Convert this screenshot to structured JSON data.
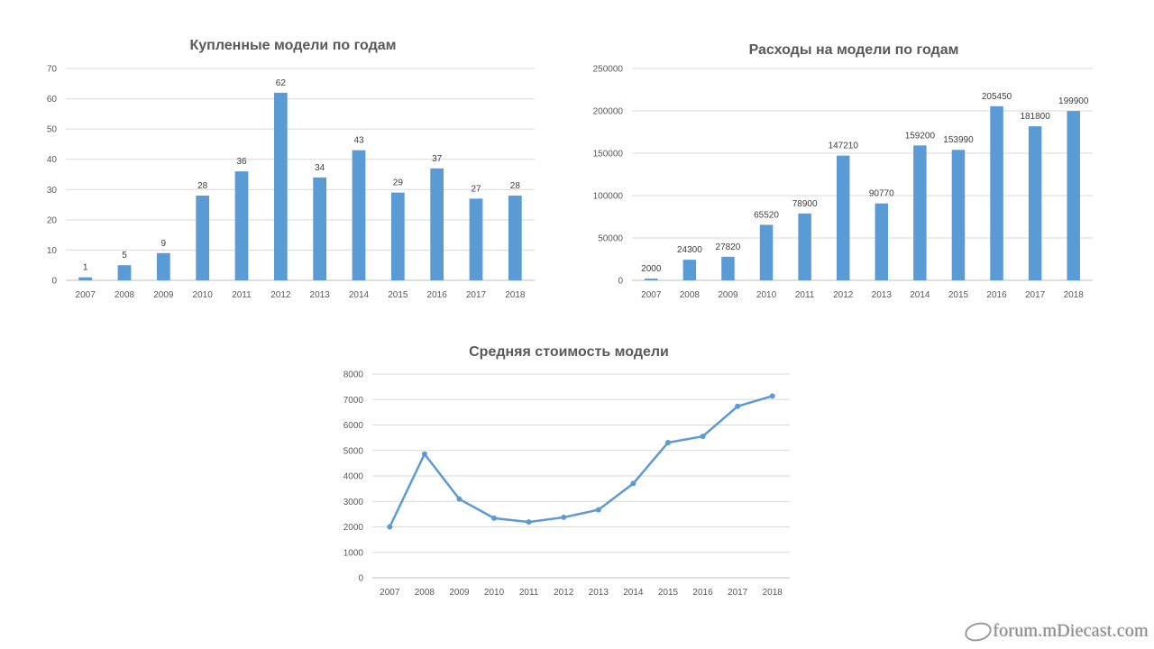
{
  "chart_data": [
    {
      "type": "bar",
      "title": "Купленные модели по годам",
      "categories": [
        "2007",
        "2008",
        "2009",
        "2010",
        "2011",
        "2012",
        "2013",
        "2014",
        "2015",
        "2016",
        "2017",
        "2018"
      ],
      "values": [
        1,
        5,
        9,
        28,
        36,
        62,
        34,
        43,
        29,
        37,
        27,
        28
      ],
      "ylim": [
        0,
        70
      ],
      "yticks": [
        0,
        10,
        20,
        30,
        40,
        50,
        60,
        70
      ],
      "grid": true,
      "data_labels": true,
      "color": "#5b9bd5"
    },
    {
      "type": "bar",
      "title": "Расходы на модели по годам",
      "categories": [
        "2007",
        "2008",
        "2009",
        "2010",
        "2011",
        "2012",
        "2013",
        "2014",
        "2015",
        "2016",
        "2017",
        "2018"
      ],
      "values": [
        2000,
        24300,
        27820,
        65520,
        78900,
        147210,
        90770,
        159200,
        153990,
        205450,
        181800,
        199900
      ],
      "ylim": [
        0,
        250000
      ],
      "yticks": [
        0,
        50000,
        100000,
        150000,
        200000,
        250000
      ],
      "grid": true,
      "data_labels": true,
      "color": "#5b9bd5"
    },
    {
      "type": "line",
      "title": "Средняя стоимость модели",
      "categories": [
        "2007",
        "2008",
        "2009",
        "2010",
        "2011",
        "2012",
        "2013",
        "2014",
        "2015",
        "2016",
        "2017",
        "2018"
      ],
      "values": [
        2000,
        4860,
        3091,
        2340,
        2192,
        2374,
        2670,
        3702,
        5310,
        5553,
        6733,
        7139
      ],
      "ylim": [
        0,
        8000
      ],
      "yticks": [
        0,
        1000,
        2000,
        3000,
        4000,
        5000,
        6000,
        7000,
        8000
      ],
      "grid": true,
      "markers": true,
      "color": "#5b9bd5"
    }
  ],
  "watermark": {
    "text": "forum.mDiecast.com"
  }
}
